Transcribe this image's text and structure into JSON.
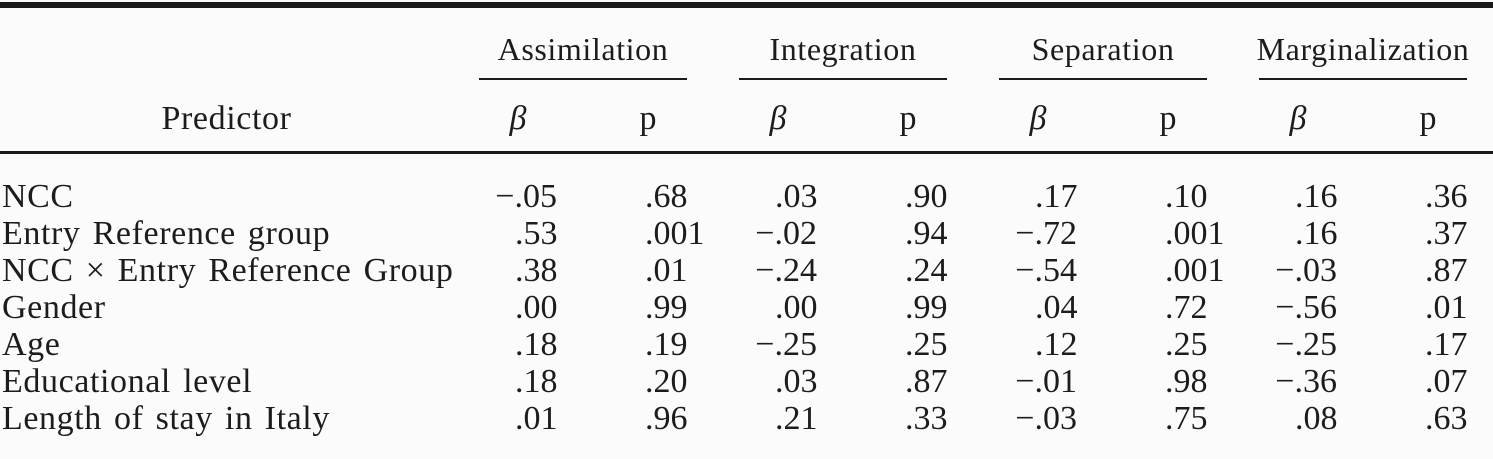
{
  "table": {
    "predictor_header": "Predictor",
    "groups": [
      {
        "label": "Assimilation"
      },
      {
        "label": "Integration"
      },
      {
        "label": "Separation"
      },
      {
        "label": "Marginalization"
      }
    ],
    "subheaders": {
      "beta": "β",
      "p": "p"
    },
    "rows": [
      {
        "label": "NCC",
        "values": [
          "−.05",
          ".68",
          ".03",
          ".90",
          ".17",
          ".10",
          ".16",
          ".36"
        ]
      },
      {
        "label": "Entry Reference group",
        "values": [
          ".53",
          ".001",
          "−.02",
          ".94",
          "−.72",
          ".001",
          ".16",
          ".37"
        ]
      },
      {
        "label": "NCC × Entry Reference Group",
        "values": [
          ".38",
          ".01",
          "−.24",
          ".24",
          "−.54",
          ".001",
          "−.03",
          ".87"
        ]
      },
      {
        "label": "Gender",
        "values": [
          ".00",
          ".99",
          ".00",
          ".99",
          ".04",
          ".72",
          "−.56",
          ".01"
        ]
      },
      {
        "label": "Age",
        "values": [
          ".18",
          ".19",
          "−.25",
          ".25",
          ".12",
          ".25",
          "−.25",
          ".17"
        ]
      },
      {
        "label": "Educational level",
        "values": [
          ".18",
          ".20",
          ".03",
          ".87",
          "−.01",
          ".98",
          "−.36",
          ".07"
        ]
      },
      {
        "label": "Length of stay in Italy",
        "values": [
          ".01",
          ".96",
          ".21",
          ".33",
          "−.03",
          ".75",
          ".08",
          ".63"
        ]
      }
    ],
    "colors": {
      "rule": "#191919",
      "text": "#1c1c1c",
      "background": "#fbfbfb"
    }
  },
  "chart_data": {
    "type": "table",
    "title": "",
    "columns": [
      "Predictor",
      "Assimilation β",
      "Assimilation p",
      "Integration β",
      "Integration p",
      "Separation β",
      "Separation p",
      "Marginalization β",
      "Marginalization p"
    ],
    "rows": [
      [
        "NCC",
        "−.05",
        ".68",
        ".03",
        ".90",
        ".17",
        ".10",
        ".16",
        ".36"
      ],
      [
        "Entry Reference group",
        ".53",
        ".001",
        "−.02",
        ".94",
        "−.72",
        ".001",
        ".16",
        ".37"
      ],
      [
        "NCC × Entry Reference Group",
        ".38",
        ".01",
        "−.24",
        ".24",
        "−.54",
        ".001",
        "−.03",
        ".87"
      ],
      [
        "Gender",
        ".00",
        ".99",
        ".00",
        ".99",
        ".04",
        ".72",
        "−.56",
        ".01"
      ],
      [
        "Age",
        ".18",
        ".19",
        "−.25",
        ".25",
        ".12",
        ".25",
        "−.25",
        ".17"
      ],
      [
        "Educational level",
        ".18",
        ".20",
        ".03",
        ".87",
        "−.01",
        ".98",
        "−.36",
        ".07"
      ],
      [
        "Length of stay in Italy",
        ".01",
        ".96",
        ".21",
        ".33",
        "−.03",
        ".75",
        ".08",
        ".63"
      ]
    ]
  }
}
